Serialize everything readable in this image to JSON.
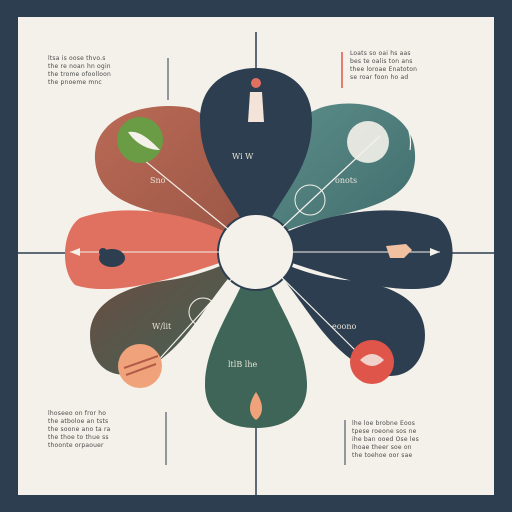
{
  "colors": {
    "frame": "#2d3e50",
    "paper": "#f4f1ea",
    "navy": "#2c3e50",
    "teal": "#4d7c7a",
    "green_dark": "#3f6558",
    "coral": "#e0705f",
    "rust": "#b35a48",
    "accent_red": "#e0554a",
    "accent_green": "#6a9b45",
    "peach": "#f0a37a"
  },
  "text_blocks": {
    "top_left": "ltsa is oose thvo.s\nthe re noan hn ogin\nthe trome ofoolloon\nthe pnoeme mnc",
    "top_right": "Loats so oai hs aas\nbes te oalis ton ans\nthee loroae Enatoton\nse roar foon ho ad",
    "bottom_left": "lhoseeo on fror ho\nthe atboloe an tsts\nthe soone ano ta ra\nthe thoe to thue ss\nthoonte orpaouer",
    "bottom_right": "lhe loe brobne Eoos\ntpese roeone sos ne\nihe ban ooed Ose les\nlhoae theer soe on\nthe toehoe oor sae"
  },
  "petal_labels": {
    "top": "Wi W",
    "upper_left": "Sno",
    "upper_right": "onots",
    "lower_left": "W/lit",
    "lower_right": "eoono",
    "bottom": "ltlB lhe"
  },
  "icons": {
    "top": "person-icon",
    "upper_left": "leaf-icon",
    "upper_right": "moon-circle-icon",
    "left": "animal-silhouette-icon",
    "right": "animal-silhouette-icon",
    "lower_left": "hands-icon",
    "lower_right": "creature-icon",
    "bottom": "flame-icon"
  }
}
